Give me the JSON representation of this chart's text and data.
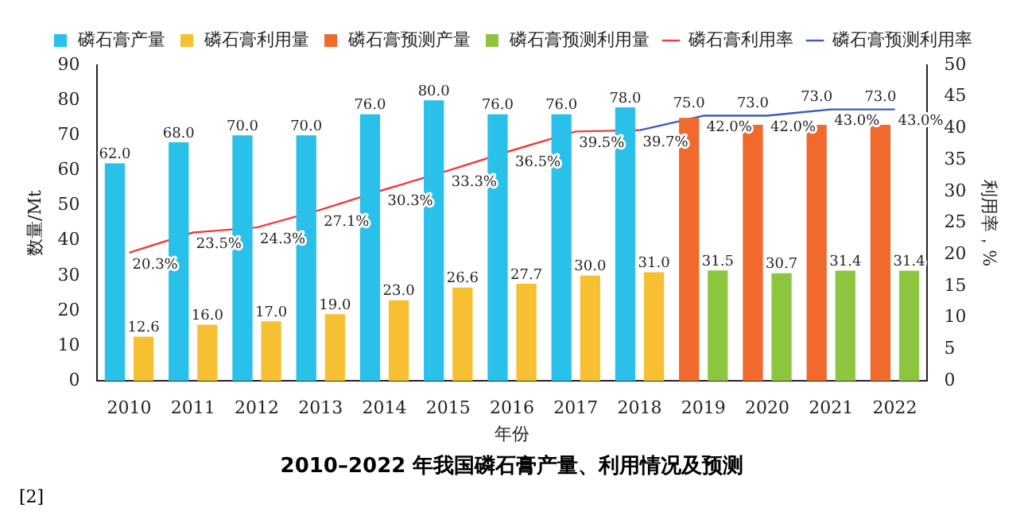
{
  "chart_data": {
    "type": "bar",
    "title": "2010–2022 年我国磷石膏产量、利用情况及预测",
    "xlabel": "年份",
    "ylabel": "数量/Mt",
    "y2label": "利用率，%",
    "categories": [
      "2010",
      "2011",
      "2012",
      "2013",
      "2014",
      "2015",
      "2016",
      "2017",
      "2018",
      "2019",
      "2020",
      "2021",
      "2022"
    ],
    "series": [
      {
        "name": "磷石膏产量",
        "color": "#29c0ea",
        "values": [
          62.0,
          68.0,
          70.0,
          70.0,
          76.0,
          80.0,
          76.0,
          76.0,
          78.0,
          null,
          null,
          null,
          null
        ],
        "value_labels": [
          "62.0",
          "68.0",
          "70.0",
          "70.0",
          "76.0",
          "80.0",
          "76.0",
          "76.0",
          "78.0",
          null,
          null,
          null,
          null
        ]
      },
      {
        "name": "磷石膏利用量",
        "color": "#f6c032",
        "values": [
          12.6,
          16.0,
          17.0,
          19.0,
          23.0,
          26.6,
          27.7,
          30.0,
          31.0,
          null,
          null,
          null,
          null
        ],
        "value_labels": [
          "12.6",
          "16.0",
          "17.0",
          "19.0",
          "23.0",
          "26.6",
          "27.7",
          "30.0",
          "31.0",
          null,
          null,
          null,
          null
        ]
      },
      {
        "name": "磷石膏预测产量",
        "color": "#f06a2e",
        "values": [
          null,
          null,
          null,
          null,
          null,
          null,
          null,
          null,
          null,
          75.0,
          73.0,
          73.0,
          73.0
        ],
        "value_labels": [
          null,
          null,
          null,
          null,
          null,
          null,
          null,
          null,
          null,
          "75.0",
          "73.0",
          "73.0",
          "73.0"
        ]
      },
      {
        "name": "磷石膏预测利用量",
        "color": "#8cc63f",
        "values": [
          null,
          null,
          null,
          null,
          null,
          null,
          null,
          null,
          null,
          31.5,
          30.7,
          31.4,
          31.4
        ],
        "value_labels": [
          null,
          null,
          null,
          null,
          null,
          null,
          null,
          null,
          null,
          "31.5",
          "30.7",
          "31.4",
          "31.4"
        ]
      },
      {
        "name": "磷石膏利用率",
        "type": "line",
        "axis": "y2",
        "color": "#f03c3c",
        "values": [
          20.3,
          23.5,
          24.3,
          27.1,
          30.3,
          33.3,
          36.5,
          39.5,
          39.7,
          null,
          null,
          null,
          null
        ],
        "value_labels": [
          "20.3%",
          "23.5%",
          "24.3%",
          "27.1%",
          "30.3%",
          "33.3%",
          "36.5%",
          "39.5%",
          "39.7%",
          null,
          null,
          null,
          null
        ]
      },
      {
        "name": "磷石膏预测利用率",
        "type": "line",
        "axis": "y2",
        "color": "#3a5cbf",
        "values": [
          null,
          null,
          null,
          null,
          null,
          null,
          null,
          null,
          39.7,
          42.0,
          42.0,
          43.0,
          43.0
        ],
        "value_labels": [
          null,
          null,
          null,
          null,
          null,
          null,
          null,
          null,
          null,
          "42.0%",
          "42.0%",
          "43.0%",
          "43.0%"
        ]
      }
    ],
    "ylim": [
      0,
      90
    ],
    "yticks": [
      0,
      10,
      20,
      30,
      40,
      50,
      60,
      70,
      80,
      90
    ],
    "y2lim": [
      0,
      50
    ],
    "y2ticks": [
      0,
      5,
      10,
      15,
      20,
      25,
      30,
      35,
      40,
      45,
      50
    ],
    "legend": "top",
    "grid": false,
    "marker": "none",
    "annotations": [
      "[2]"
    ]
  }
}
